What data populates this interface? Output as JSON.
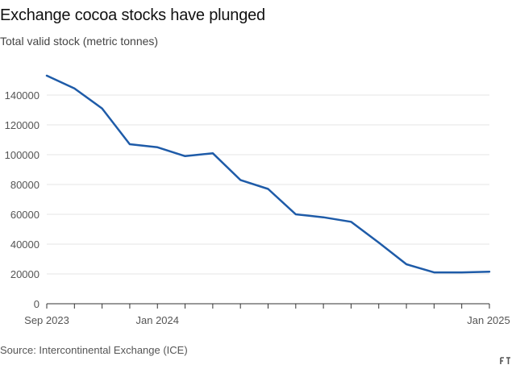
{
  "header": {
    "title": "Exchange cocoa stocks have plunged",
    "subtitle": "Total valid stock (metric tonnes)"
  },
  "footer": {
    "source": "Source: Intercontinental Exchange (ICE)"
  },
  "colors": {
    "line": "#1e5ba8",
    "grid": "#e6e6e6",
    "baseline": "#333333"
  },
  "chart_data": {
    "type": "line",
    "title": "Exchange cocoa stocks have plunged",
    "subtitle": "Total valid stock (metric tonnes)",
    "xlabel": "",
    "ylabel": "",
    "x": [
      "2023-09",
      "2023-10",
      "2023-11",
      "2023-12",
      "2024-01",
      "2024-02",
      "2024-03",
      "2024-04",
      "2024-05",
      "2024-06",
      "2024-07",
      "2024-08",
      "2024-09",
      "2024-10",
      "2024-11",
      "2024-12",
      "2025-01"
    ],
    "x_tick_labels": [
      {
        "x": "2023-09",
        "label": "Sep 2023"
      },
      {
        "x": "2024-01",
        "label": "Jan 2024"
      },
      {
        "x": "2025-01",
        "label": "Jan 2025"
      }
    ],
    "series": [
      {
        "values": [
          153000,
          144500,
          131000,
          107000,
          105000,
          99000,
          101000,
          83000,
          77000,
          60000,
          58000,
          55000,
          41000,
          26500,
          21000,
          21000,
          21500
        ]
      }
    ],
    "ylim": [
      0,
      150000
    ],
    "yticks": [
      0,
      20000,
      40000,
      60000,
      80000,
      100000,
      120000,
      140000
    ],
    "grid": true,
    "legend": "none"
  }
}
